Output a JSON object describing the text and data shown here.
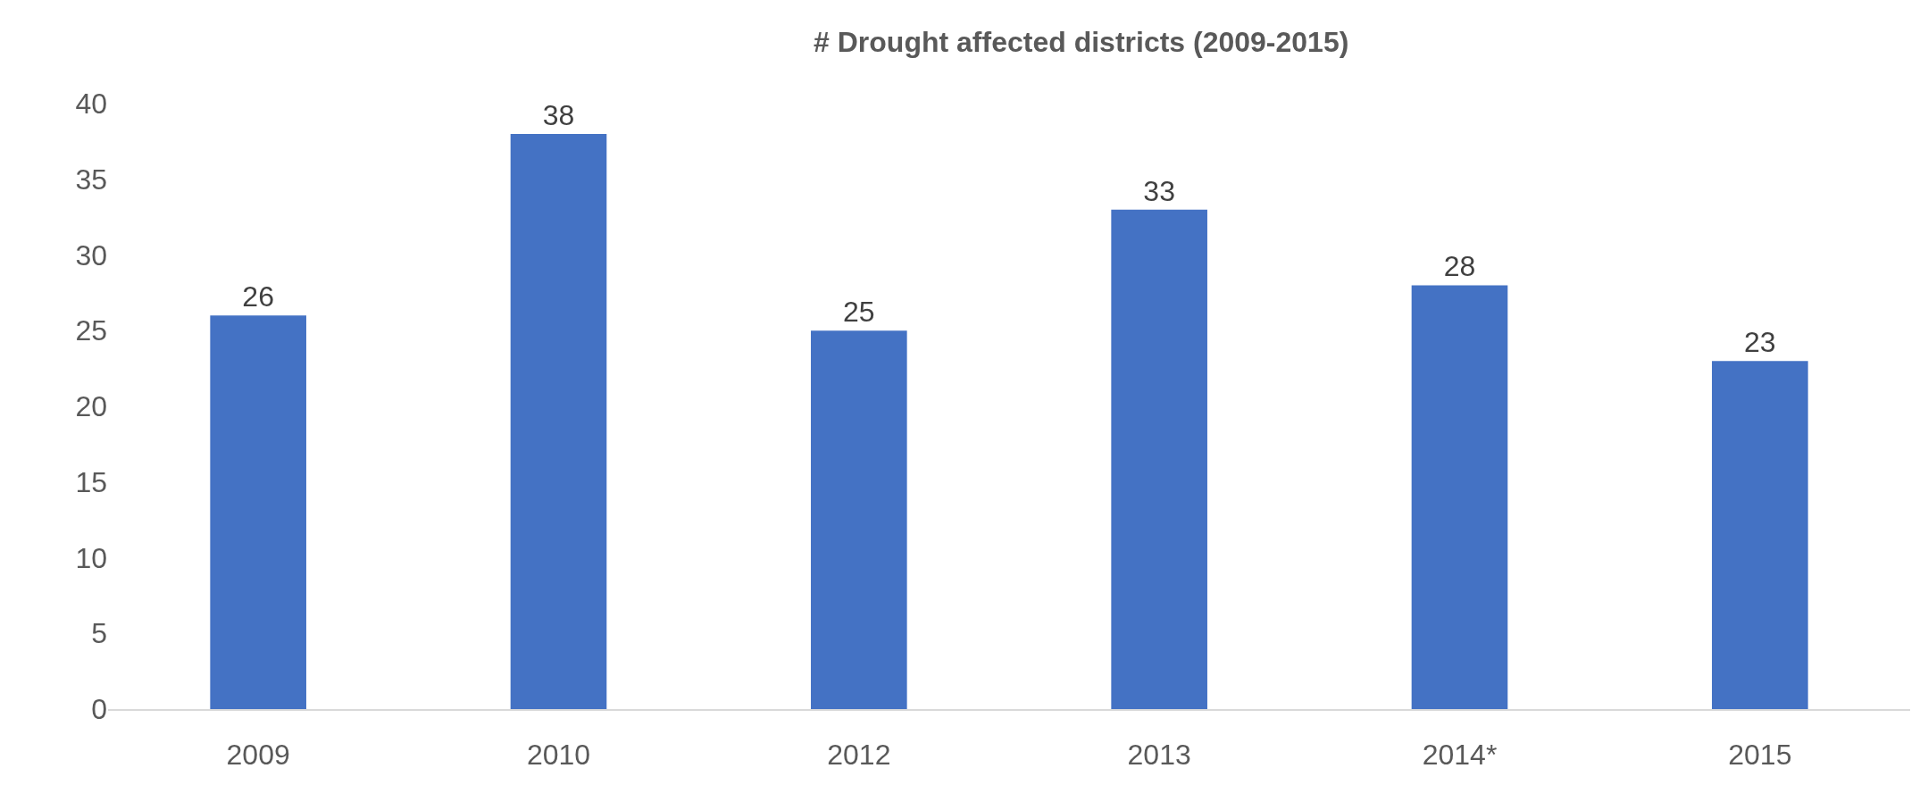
{
  "chart_data": {
    "type": "bar",
    "title": "# Drought affected districts (2009-2015)",
    "categories": [
      "2009",
      "2010",
      "2012",
      "2013",
      "2014*",
      "2015"
    ],
    "values": [
      26,
      38,
      25,
      33,
      28,
      23
    ],
    "color": "#4472c4",
    "ylim": [
      0,
      40
    ],
    "yticks": [
      0,
      5,
      10,
      15,
      20,
      25,
      30,
      35,
      40
    ],
    "data_labels": true
  }
}
